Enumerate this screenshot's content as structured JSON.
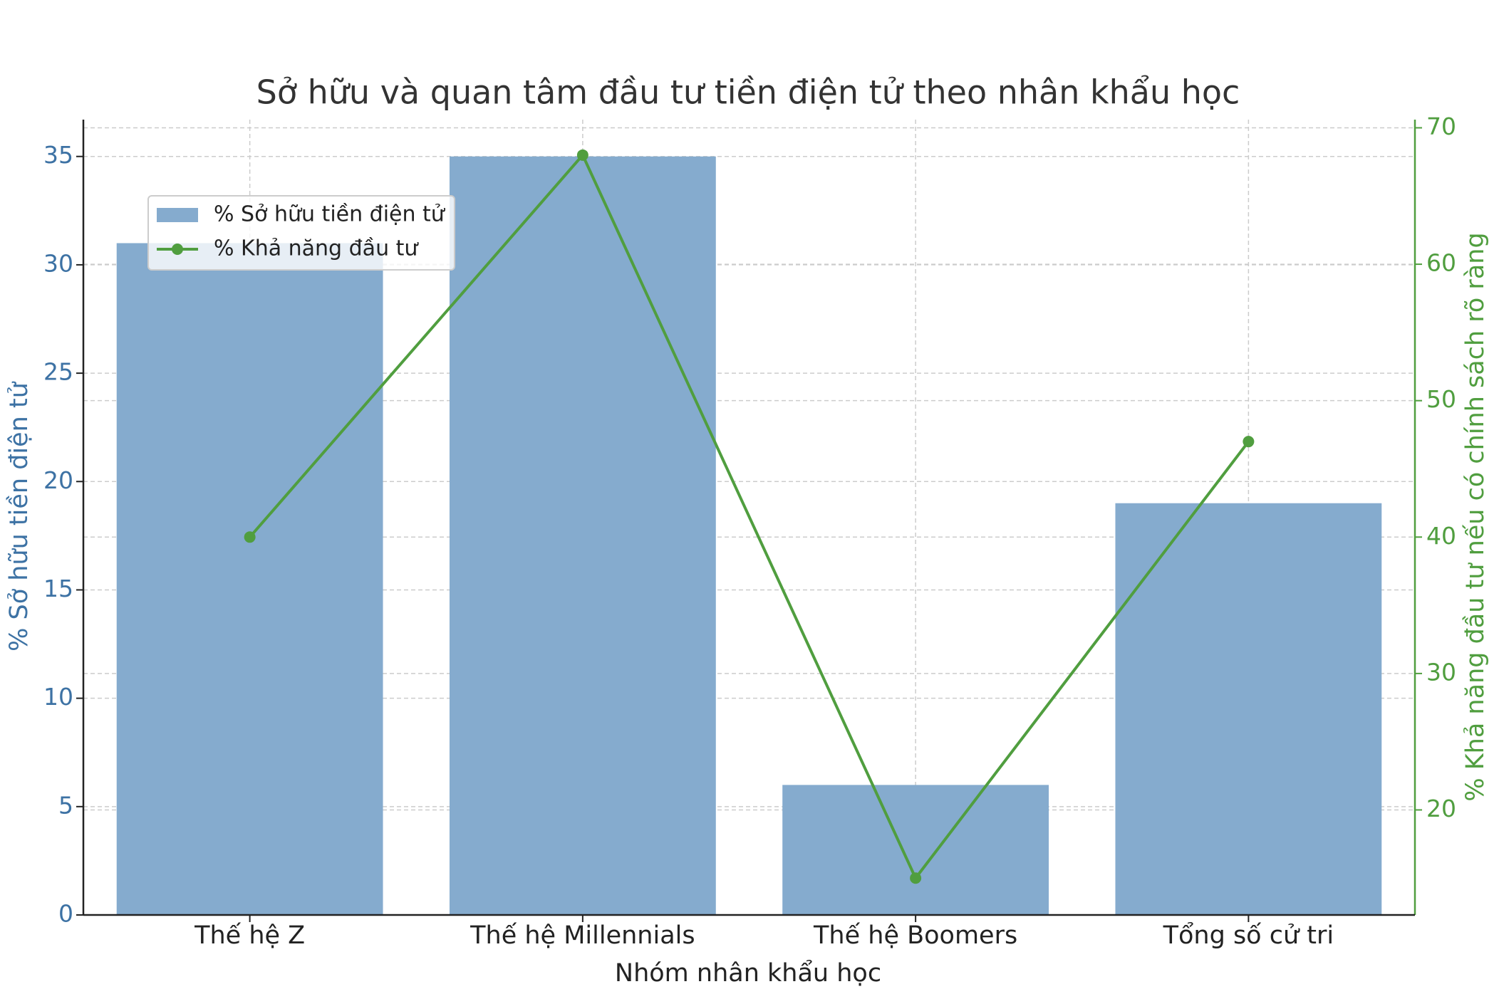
{
  "chart_data": {
    "type": "bar",
    "title": "Sở hữu và quan tâm đầu tư tiền điện tử theo nhân khẩu học",
    "x_label": "Nhóm nhân khẩu học",
    "y_label": "% Sở hữu tiền điện tử",
    "y2_label": "% Khả năng đầu tư nếu có chính sách rõ ràng",
    "categories": [
      "Thế hệ Z",
      "Thế hệ Millennials",
      "Thế hệ Boomers",
      "Tổng số cử tri"
    ],
    "series": [
      {
        "name": "% Sở hữu tiền điện tử",
        "type": "bar",
        "color": "#85abce",
        "values": [
          31,
          35,
          6,
          19
        ]
      },
      {
        "name": "% Khả năng đầu tư",
        "type": "line",
        "axis": "y2",
        "color": "#509e3f",
        "values": [
          40,
          68,
          15,
          47
        ]
      }
    ],
    "ylim": [
      0,
      36.7
    ],
    "yticks": [
      0,
      5,
      10,
      15,
      20,
      25,
      30,
      35
    ],
    "y2lim": [
      12.3,
      70.6
    ],
    "y2ticks": [
      20,
      30,
      40,
      50,
      60,
      70
    ],
    "y_color": "#3d72a4",
    "y2_color": "#509e3f",
    "grid": true,
    "legend": "upper left"
  }
}
